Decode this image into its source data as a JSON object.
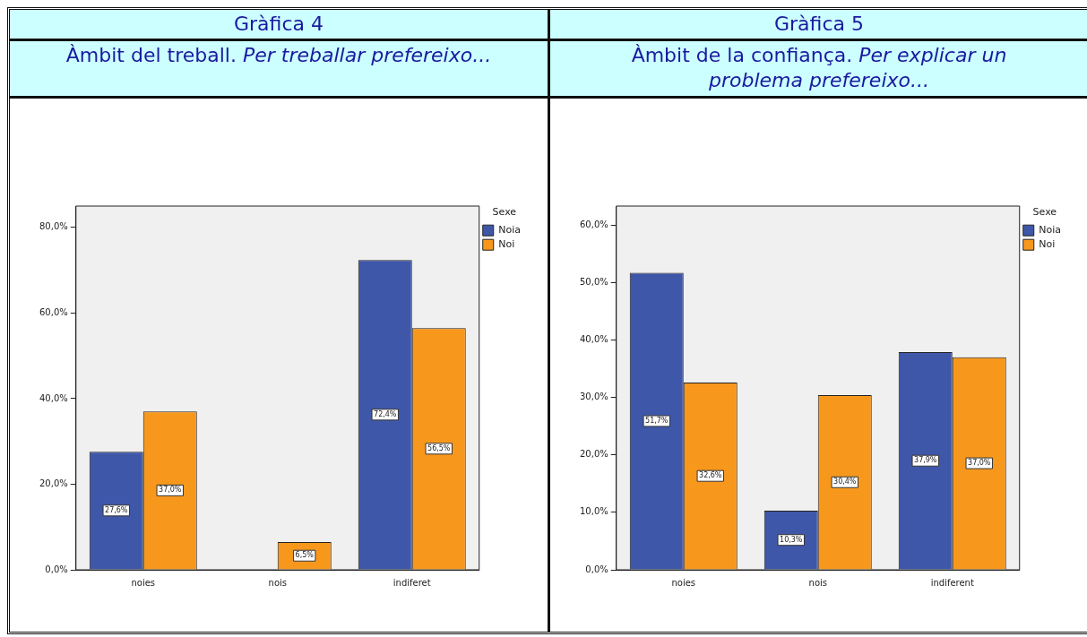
{
  "chart_data": [
    {
      "type": "bar",
      "title": "Gràfica 4",
      "subtitle": "Àmbit del treball. Per treballar prefereixo...",
      "legend_title": "Sexe",
      "legend": "top right",
      "grid": false,
      "categories": [
        "noies",
        "nois",
        "indiferet"
      ],
      "series": [
        {
          "name": "Noia",
          "color": "#3f57a8",
          "values": [
            27.6,
            0,
            72.4
          ],
          "value_labels": [
            "27,6%",
            null,
            "72,4%"
          ]
        },
        {
          "name": "Noi",
          "color": "#f7981d",
          "values": [
            37.0,
            6.5,
            56.5
          ],
          "value_labels": [
            "37,0%",
            "6,5%",
            "56,5%"
          ]
        }
      ],
      "ylim": [
        0,
        85
      ],
      "yticks": [
        {
          "value": 0,
          "label": "0,0%"
        },
        {
          "value": 20,
          "label": "20,0%"
        },
        {
          "value": 40,
          "label": "40,0%"
        },
        {
          "value": 60,
          "label": "60,0%"
        },
        {
          "value": 80,
          "label": "80,0%"
        }
      ]
    },
    {
      "type": "bar",
      "title": "Gràfica 5",
      "subtitle": "Àmbit de la confiança. Per explicar un problema prefereixo...",
      "legend_title": "Sexe",
      "legend": "top right",
      "grid": false,
      "categories": [
        "noies",
        "nois",
        "indiferent"
      ],
      "series": [
        {
          "name": "Noia",
          "color": "#3f57a8",
          "values": [
            51.7,
            10.3,
            37.9
          ],
          "value_labels": [
            "51,7%",
            "10,3%",
            "37,9%"
          ]
        },
        {
          "name": "Noi",
          "color": "#f7981d",
          "values": [
            32.6,
            30.4,
            37.0
          ],
          "value_labels": [
            "32,6%",
            "30,4%",
            "37,0%"
          ]
        }
      ],
      "ylim": [
        0,
        63.3
      ],
      "yticks": [
        {
          "value": 0,
          "label": "0,0%"
        },
        {
          "value": 10,
          "label": "10,0%"
        },
        {
          "value": 20,
          "label": "20,0%"
        },
        {
          "value": 30,
          "label": "30,0%"
        },
        {
          "value": 40,
          "label": "40,0%"
        },
        {
          "value": 50,
          "label": "50,0%"
        },
        {
          "value": 60,
          "label": "60,0%"
        }
      ]
    }
  ]
}
